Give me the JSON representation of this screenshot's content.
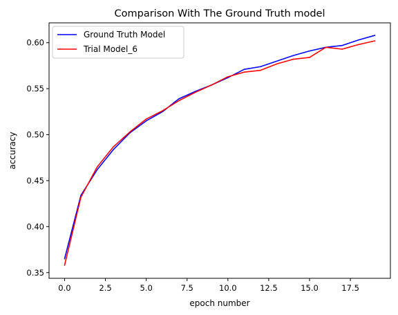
{
  "chart_data": {
    "type": "line",
    "title": "Comparison With The Ground Truth model",
    "xlabel": "epoch number",
    "ylabel": "accuracy",
    "xlim": [
      -0.95,
      19.95
    ],
    "ylim": [
      0.3438,
      0.6216
    ],
    "x_ticks": [
      0,
      2.5,
      5,
      7.5,
      10,
      12.5,
      15,
      17.5
    ],
    "x_tick_labels": [
      "0.0",
      "2.5",
      "5.0",
      "7.5",
      "10.0",
      "12.5",
      "15.0",
      "17.5"
    ],
    "y_ticks": [
      0.35,
      0.4,
      0.45,
      0.5,
      0.55,
      0.6
    ],
    "y_tick_labels": [
      "0.35",
      "0.40",
      "0.45",
      "0.50",
      "0.55",
      "0.60"
    ],
    "grid": false,
    "legend_position": "top-left",
    "x": [
      0,
      1,
      2,
      3,
      4,
      5,
      6,
      7,
      8,
      9,
      10,
      11,
      12,
      13,
      14,
      15,
      16,
      17,
      18,
      19
    ],
    "series": [
      {
        "name": "Ground Truth Model",
        "color": "#0000ff",
        "values": [
          0.365,
          0.434,
          0.462,
          0.484,
          0.502,
          0.515,
          0.525,
          0.539,
          0.547,
          0.554,
          0.562,
          0.571,
          0.574,
          0.58,
          0.586,
          0.591,
          0.595,
          0.597,
          0.603,
          0.608
        ]
      },
      {
        "name": "Trial Model_6",
        "color": "#ff0000",
        "values": [
          0.358,
          0.432,
          0.465,
          0.487,
          0.503,
          0.517,
          0.526,
          0.537,
          0.546,
          0.554,
          0.563,
          0.568,
          0.57,
          0.577,
          0.582,
          0.584,
          0.595,
          0.593,
          0.598,
          0.602
        ]
      }
    ]
  }
}
